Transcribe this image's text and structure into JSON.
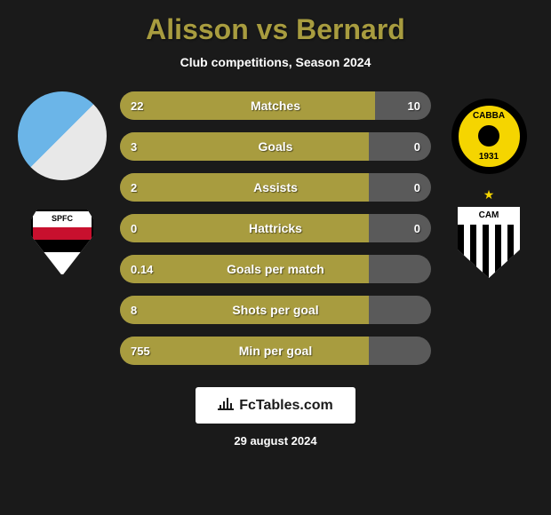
{
  "title": "Alisson vs Bernard",
  "subtitle": "Club competitions, Season 2024",
  "date": "29 august 2024",
  "attribution": "FcTables.com",
  "colors": {
    "background": "#1a1a1a",
    "accent": "#a89c3f",
    "bar_bg": "#5a5a5a",
    "text": "#ffffff"
  },
  "players": {
    "left": {
      "name": "Alisson",
      "club": "SPFC"
    },
    "right": {
      "name": "Bernard",
      "club": "CAM"
    }
  },
  "badges": {
    "left_club": {
      "abbr": "SPFC"
    },
    "right_top": {
      "abbr": "CABBA",
      "year": "1931"
    },
    "right_bottom": {
      "abbr": "CAM"
    }
  },
  "stats": [
    {
      "label": "Matches",
      "left_val": "22",
      "right_val": "10",
      "left_pct": 82,
      "right_pct": 0
    },
    {
      "label": "Goals",
      "left_val": "3",
      "right_val": "0",
      "left_pct": 80,
      "right_pct": 0
    },
    {
      "label": "Assists",
      "left_val": "2",
      "right_val": "0",
      "left_pct": 80,
      "right_pct": 0
    },
    {
      "label": "Hattricks",
      "left_val": "0",
      "right_val": "0",
      "left_pct": 80,
      "right_pct": 0
    },
    {
      "label": "Goals per match",
      "left_val": "0.14",
      "right_val": "",
      "left_pct": 80,
      "right_pct": 0
    },
    {
      "label": "Shots per goal",
      "left_val": "8",
      "right_val": "",
      "left_pct": 80,
      "right_pct": 0
    },
    {
      "label": "Min per goal",
      "left_val": "755",
      "right_val": "",
      "left_pct": 80,
      "right_pct": 0
    }
  ]
}
